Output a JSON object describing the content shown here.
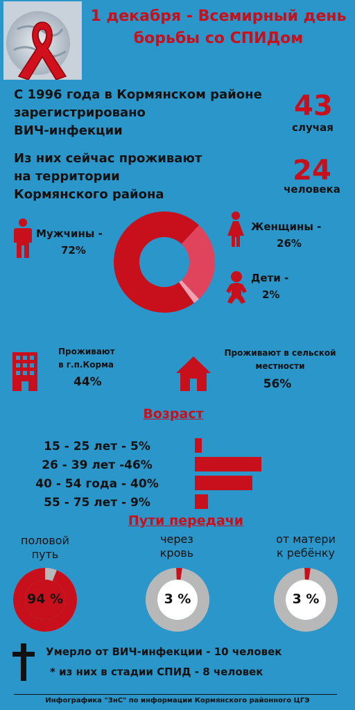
{
  "title": "1 декабря - Всемирный день борьбы со СПИДом",
  "registered": {
    "text_line1": "С 1996 года в Кормянском районе",
    "text_line2": "зарегистрировано",
    "text_line3": "ВИЧ-инфекции",
    "count": "43",
    "unit": "случая"
  },
  "living": {
    "text_line1": "Из них сейчас проживают",
    "text_line2": "на территории",
    "text_line3": "Кормянского района",
    "count": "24",
    "unit": "человека"
  },
  "gender": {
    "men_label": "Мужчины -",
    "men_value": "72%",
    "women_label": "Женщины -",
    "women_value": "26%",
    "children_label": "Дети -",
    "children_value": "2%"
  },
  "residence": {
    "city_line1": "Проживают",
    "city_line2": "в г.п.Корма",
    "city_value": "44%",
    "rural_line1": "Проживают в сельской",
    "rural_line2": "местности",
    "rural_value": "56%"
  },
  "age": {
    "title": "Возраст",
    "groups": [
      {
        "label": "15 - 25 лет - 5%"
      },
      {
        "label": "26 - 39 лет -46%"
      },
      {
        "label": "40 - 54 года - 40%"
      },
      {
        "label": "55 - 75 лет - 9%"
      }
    ]
  },
  "routes": {
    "title": "Пути передачи",
    "items": [
      {
        "line1": "половой",
        "line2": "путь",
        "value_label": "94 %"
      },
      {
        "line1": "через",
        "line2": "кровь",
        "value_label": "3 %"
      },
      {
        "line1": "от матери",
        "line2": "к ребёнку",
        "value_label": "3 %"
      }
    ]
  },
  "deaths": {
    "line1": "Умерло от ВИЧ-инфекции - 10 человек",
    "line2": "* из них в стадии СПИД - 8 человек"
  },
  "footer": "Инфографика \"ЗнС\" по информации Кормянского районного ЦГЭ",
  "colors": {
    "background": "#2b96c9",
    "accent_red": "#c8101c",
    "women_pink": "#e0445c",
    "children_pink": "#f3a0b0",
    "ring_gray": "#b8b8b8"
  },
  "icons": [
    "aids-ribbon-icon",
    "man-icon",
    "woman-icon",
    "baby-icon",
    "building-icon",
    "house-icon",
    "cross-icon"
  ],
  "chart_data": [
    {
      "type": "pie",
      "categories": [
        "Мужчины",
        "Женщины",
        "Дети"
      ],
      "values": [
        72,
        26,
        2
      ]
    },
    {
      "type": "bar",
      "categories": [
        "15 - 25 лет",
        "26 - 39 лет",
        "40 - 54 года",
        "55 - 75 лет"
      ],
      "values": [
        5,
        46,
        40,
        9
      ]
    },
    {
      "type": "pie",
      "categories": [
        "половой путь",
        "через кровь",
        "от матери к ребёнку"
      ],
      "values": [
        94,
        3,
        3
      ]
    }
  ]
}
